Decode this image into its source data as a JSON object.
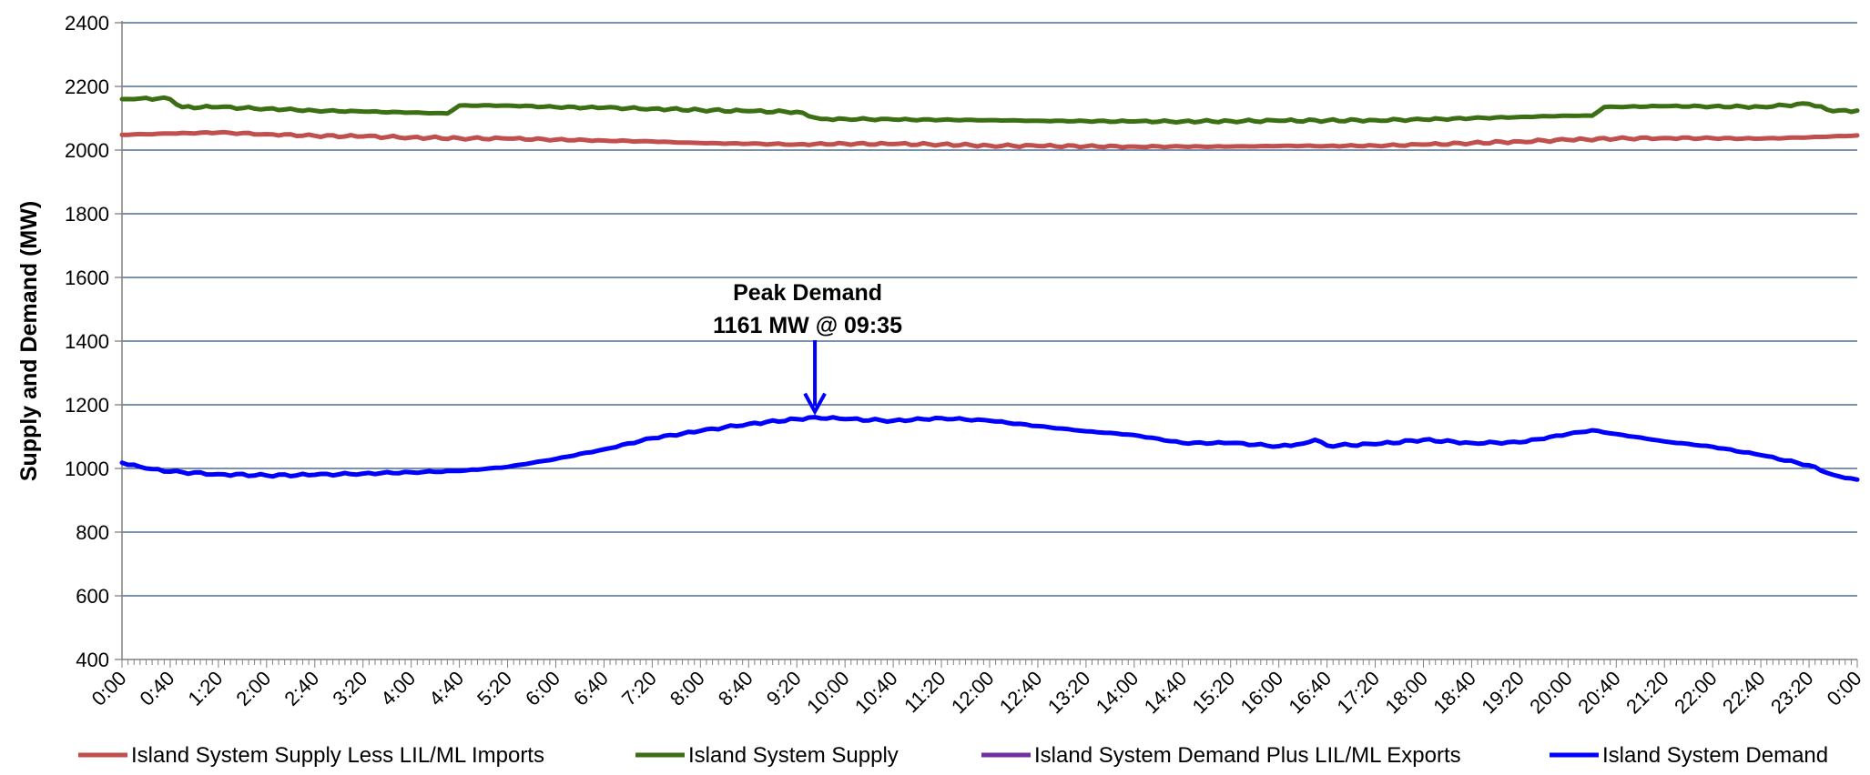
{
  "chart_data": {
    "type": "line",
    "title": "",
    "xlabel": "",
    "ylabel": "Supply and Demand (MW)",
    "ylim": [
      400,
      2400
    ],
    "yticks": [
      400,
      600,
      800,
      1000,
      1200,
      1400,
      1600,
      1800,
      2000,
      2200,
      2400
    ],
    "x_range_minutes": [
      0,
      1440
    ],
    "x_tick_labels": [
      "0:00",
      "0:40",
      "1:20",
      "2:00",
      "2:40",
      "3:20",
      "4:00",
      "4:40",
      "5:20",
      "6:00",
      "6:40",
      "7:20",
      "8:00",
      "8:40",
      "9:20",
      "10:00",
      "10:40",
      "11:20",
      "12:00",
      "12:40",
      "13:20",
      "14:00",
      "14:40",
      "15:20",
      "16:00",
      "16:40",
      "17:20",
      "18:00",
      "18:40",
      "19:20",
      "20:00",
      "20:40",
      "21:20",
      "22:00",
      "22:40",
      "23:20",
      "0:00"
    ],
    "grid": true,
    "legend_position": "bottom",
    "series": [
      {
        "name": "Island System Supply Less LIL/ML Imports",
        "color": "#c0504d",
        "x": [
          "0:00",
          "0:40",
          "1:20",
          "2:00",
          "2:40",
          "3:20",
          "4:00",
          "4:40",
          "5:20",
          "6:00",
          "6:40",
          "7:20",
          "8:00",
          "8:40",
          "9:20",
          "10:00",
          "10:40",
          "11:20",
          "12:00",
          "12:40",
          "13:20",
          "14:00",
          "14:40",
          "15:20",
          "16:00",
          "16:40",
          "17:20",
          "18:00",
          "18:40",
          "19:20",
          "20:00",
          "20:40",
          "21:20",
          "22:00",
          "22:40",
          "23:20",
          "0:00"
        ],
        "values": [
          2048,
          2052,
          2055,
          2050,
          2045,
          2043,
          2040,
          2037,
          2036,
          2033,
          2030,
          2027,
          2022,
          2020,
          2018,
          2020,
          2019,
          2018,
          2014,
          2013,
          2012,
          2011,
          2011,
          2011,
          2013,
          2013,
          2014,
          2017,
          2022,
          2027,
          2032,
          2036,
          2038,
          2037,
          2036,
          2040,
          2046
        ]
      },
      {
        "name": "Island System Supply",
        "color": "#3c6e14",
        "x": [
          "0:00",
          "0:10",
          "0:30",
          "0:40",
          "0:50",
          "1:20",
          "2:00",
          "2:40",
          "3:20",
          "4:00",
          "4:30",
          "4:40",
          "5:20",
          "6:00",
          "6:40",
          "7:20",
          "8:00",
          "8:40",
          "9:20",
          "9:40",
          "10:00",
          "10:40",
          "11:20",
          "12:00",
          "12:40",
          "13:20",
          "14:00",
          "14:40",
          "15:20",
          "16:00",
          "16:40",
          "17:20",
          "18:00",
          "18:40",
          "19:20",
          "20:00",
          "20:20",
          "20:30",
          "21:20",
          "22:00",
          "22:40",
          "23:20",
          "23:40",
          "0:00"
        ],
        "values": [
          2160,
          2160,
          2162,
          2160,
          2135,
          2135,
          2130,
          2124,
          2121,
          2118,
          2115,
          2140,
          2140,
          2135,
          2133,
          2130,
          2126,
          2122,
          2120,
          2098,
          2098,
          2096,
          2095,
          2094,
          2092,
          2091,
          2090,
          2090,
          2091,
          2092,
          2093,
          2094,
          2096,
          2100,
          2104,
          2108,
          2108,
          2135,
          2138,
          2137,
          2136,
          2145,
          2122,
          2124
        ]
      },
      {
        "name": "Island System Demand Plus LIL/ML Exports",
        "color": "#7030a0",
        "x": [],
        "values": []
      },
      {
        "name": "Island System Demand",
        "color": "#0000ff",
        "x": [
          "0:00",
          "0:20",
          "0:40",
          "1:20",
          "2:00",
          "2:40",
          "3:20",
          "4:00",
          "4:40",
          "5:00",
          "5:20",
          "6:00",
          "6:40",
          "7:20",
          "8:00",
          "8:40",
          "9:20",
          "9:35",
          "10:00",
          "10:40",
          "11:20",
          "12:00",
          "12:40",
          "13:20",
          "14:00",
          "14:40",
          "15:20",
          "16:00",
          "16:20",
          "16:30",
          "16:40",
          "17:20",
          "18:00",
          "18:40",
          "19:20",
          "20:00",
          "20:20",
          "20:40",
          "21:20",
          "22:00",
          "22:40",
          "23:20",
          "23:40",
          "23:50",
          "0:00"
        ],
        "values": [
          1018,
          1000,
          990,
          982,
          978,
          980,
          984,
          988,
          992,
          998,
          1005,
          1030,
          1060,
          1095,
          1118,
          1140,
          1155,
          1161,
          1155,
          1150,
          1158,
          1150,
          1133,
          1117,
          1105,
          1080,
          1080,
          1070,
          1078,
          1090,
          1072,
          1076,
          1090,
          1080,
          1082,
          1108,
          1120,
          1108,
          1085,
          1068,
          1042,
          1010,
          980,
          970,
          965
        ]
      }
    ],
    "annotations": [
      {
        "line1": "Peak Demand",
        "line2": "1161 MW @ 09:35",
        "x": "9:35",
        "y": 1161
      }
    ]
  }
}
